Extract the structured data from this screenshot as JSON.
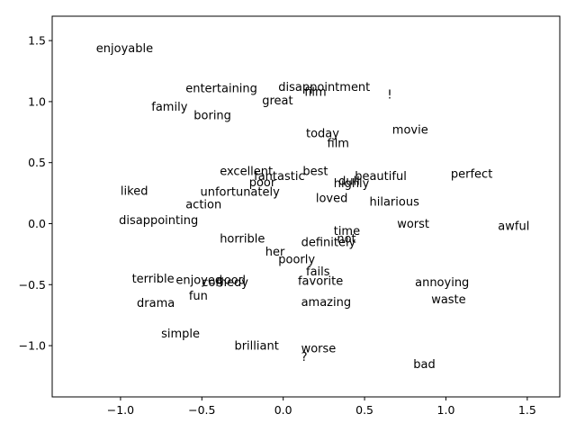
{
  "chart_data": {
    "type": "scatter",
    "title": "",
    "xlabel": "",
    "ylabel": "",
    "xlim": [
      -1.42,
      1.7
    ],
    "ylim": [
      -1.42,
      1.7
    ],
    "xticks": [
      -1.0,
      -0.5,
      0.0,
      0.5,
      1.0,
      1.5
    ],
    "yticks": [
      -1.0,
      -0.5,
      0.0,
      0.5,
      1.0,
      1.5
    ],
    "xtick_labels": [
      "−1.0",
      "−0.5",
      "0.0",
      "0.5",
      "1.0",
      "1.5"
    ],
    "ytick_labels": [
      "−1.0",
      "−0.5",
      "0.0",
      "0.5",
      "1.0",
      "1.5"
    ],
    "grid": false,
    "legend": false,
    "points": [
      {
        "label": "enjoyable",
        "x": -1.15,
        "y": 1.44
      },
      {
        "label": "entertaining",
        "x": -0.6,
        "y": 1.11
      },
      {
        "label": "disappointment",
        "x": -0.03,
        "y": 1.12
      },
      {
        "label": "film",
        "x": 0.13,
        "y": 1.08
      },
      {
        "label": "!",
        "x": 0.64,
        "y": 1.06
      },
      {
        "label": "great",
        "x": -0.13,
        "y": 1.01
      },
      {
        "label": "family",
        "x": -0.81,
        "y": 0.96
      },
      {
        "label": "boring",
        "x": -0.55,
        "y": 0.89
      },
      {
        "label": "movie",
        "x": 0.67,
        "y": 0.77
      },
      {
        "label": "today",
        "x": 0.14,
        "y": 0.74
      },
      {
        "label": "film",
        "x": 0.27,
        "y": 0.66
      },
      {
        "label": "excellent",
        "x": -0.39,
        "y": 0.43
      },
      {
        "label": "best",
        "x": 0.12,
        "y": 0.43
      },
      {
        "label": "perfect",
        "x": 1.03,
        "y": 0.41
      },
      {
        "label": "fantastic",
        "x": -0.18,
        "y": 0.39
      },
      {
        "label": "beautiful",
        "x": 0.44,
        "y": 0.39
      },
      {
        "label": "dull",
        "x": 0.34,
        "y": 0.35
      },
      {
        "label": "poor",
        "x": -0.21,
        "y": 0.34
      },
      {
        "label": "highly",
        "x": 0.31,
        "y": 0.33
      },
      {
        "label": "liked",
        "x": -1.0,
        "y": 0.27
      },
      {
        "label": "unfortunately",
        "x": -0.51,
        "y": 0.26
      },
      {
        "label": "loved",
        "x": 0.2,
        "y": 0.21
      },
      {
        "label": "hilarious",
        "x": 0.53,
        "y": 0.18
      },
      {
        "label": "action",
        "x": -0.6,
        "y": 0.16
      },
      {
        "label": "disappointing",
        "x": -1.01,
        "y": 0.03
      },
      {
        "label": "worst",
        "x": 0.7,
        "y": 0.0
      },
      {
        "label": "awful",
        "x": 1.32,
        "y": -0.02
      },
      {
        "label": "time",
        "x": 0.31,
        "y": -0.06
      },
      {
        "label": "not",
        "x": 0.33,
        "y": -0.12
      },
      {
        "label": "horrible",
        "x": -0.39,
        "y": -0.12
      },
      {
        "label": "definitely",
        "x": 0.11,
        "y": -0.15
      },
      {
        "label": "her",
        "x": -0.11,
        "y": -0.23
      },
      {
        "label": "poorly",
        "x": -0.03,
        "y": -0.29
      },
      {
        "label": "fails",
        "x": 0.14,
        "y": -0.39
      },
      {
        "label": "terrible",
        "x": -0.93,
        "y": -0.45
      },
      {
        "label": "enjoyed",
        "x": -0.66,
        "y": -0.46
      },
      {
        "label": "good",
        "x": -0.41,
        "y": -0.46
      },
      {
        "label": "comedy",
        "x": -0.5,
        "y": -0.48
      },
      {
        "label": "favorite",
        "x": 0.09,
        "y": -0.47
      },
      {
        "label": "annoying",
        "x": 0.81,
        "y": -0.48
      },
      {
        "label": "fun",
        "x": -0.58,
        "y": -0.59
      },
      {
        "label": "waste",
        "x": 0.91,
        "y": -0.62
      },
      {
        "label": "drama",
        "x": -0.9,
        "y": -0.65
      },
      {
        "label": "amazing",
        "x": 0.11,
        "y": -0.64
      },
      {
        "label": "simple",
        "x": -0.75,
        "y": -0.9
      },
      {
        "label": "brilliant",
        "x": -0.3,
        "y": -1.0
      },
      {
        "label": "worse",
        "x": 0.11,
        "y": -1.02
      },
      {
        "label": "?",
        "x": 0.11,
        "y": -1.09
      },
      {
        "label": "bad",
        "x": 0.8,
        "y": -1.15
      }
    ]
  }
}
